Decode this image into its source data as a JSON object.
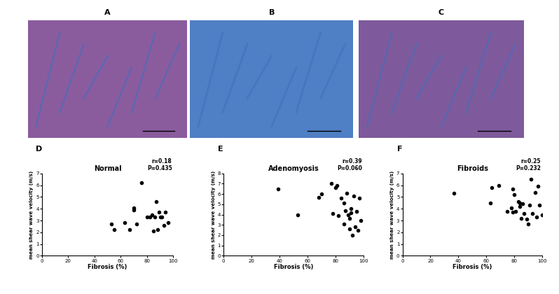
{
  "images": [
    {
      "label": "A",
      "color": "#8a5c9e"
    },
    {
      "label": "B",
      "color": "#4f7fc4"
    },
    {
      "label": "C",
      "color": "#7e5a9c"
    }
  ],
  "chart_data": [
    {
      "type": "scatter",
      "label": "D",
      "title": "Normal",
      "annotation": "r=0.18\nP=0.435",
      "x_label": "Fibrosis (%)",
      "y_label": "mean shear wave velocity (m/s)",
      "color": "#000000",
      "marker": "o",
      "x": [
        53,
        55,
        63,
        67,
        70,
        70,
        72,
        76,
        80,
        82,
        84,
        85,
        86,
        87,
        88,
        89,
        90,
        91,
        93,
        94,
        96
      ],
      "values": [
        2.7,
        2.2,
        2.8,
        2.2,
        4.1,
        3.9,
        2.7,
        6.2,
        3.3,
        3.3,
        3.5,
        2.1,
        3.3,
        4.6,
        2.2,
        3.7,
        3.3,
        3.3,
        2.6,
        3.7,
        2.8
      ],
      "xlim": [
        0,
        100
      ],
      "xticks": [
        0,
        20,
        40,
        60,
        80,
        100
      ],
      "ylim": [
        0,
        7
      ],
      "yticks": [
        0,
        1,
        2,
        3,
        4,
        5,
        6,
        7
      ]
    },
    {
      "type": "scatter",
      "label": "E",
      "title": "Adenomyosis",
      "annotation": "r=0.39\nP=0.060",
      "x_label": "Fibrosis (%)",
      "y_label": "mean shear wave velocity (m/s)",
      "color": "#000000",
      "marker": "o",
      "x": [
        39,
        53,
        68,
        70,
        77,
        78,
        80,
        81,
        82,
        84,
        86,
        86,
        87,
        88,
        89,
        90,
        90,
        91,
        91,
        92,
        93,
        94,
        95,
        96,
        97,
        98
      ],
      "values": [
        6.5,
        4.0,
        5.7,
        6.0,
        7.0,
        4.1,
        6.6,
        6.8,
        3.9,
        5.6,
        5.1,
        3.1,
        4.4,
        6.1,
        4.0,
        3.6,
        2.6,
        4.6,
        4.2,
        2.0,
        5.8,
        2.8,
        4.3,
        2.5,
        5.6,
        3.4
      ],
      "xlim": [
        0,
        100
      ],
      "xticks": [
        0,
        20,
        40,
        60,
        80,
        100
      ],
      "ylim": [
        0,
        8
      ],
      "yticks": [
        0,
        1,
        2,
        3,
        4,
        5,
        6,
        7,
        8
      ]
    },
    {
      "type": "scatter",
      "label": "F",
      "title": "Fibroids",
      "annotation": "r=0.25\nP=0.232",
      "x_label": "Fibrosis (%)",
      "y_label": "mean shear wave velocity (m/s)",
      "color": "#000000",
      "marker": "o",
      "x": [
        37,
        63,
        64,
        69,
        75,
        78,
        79,
        79,
        80,
        81,
        83,
        84,
        84,
        85,
        86,
        87,
        89,
        90,
        91,
        92,
        93,
        95,
        96,
        97,
        98,
        100
      ],
      "values": [
        5.3,
        4.5,
        5.8,
        6.0,
        3.8,
        4.1,
        5.7,
        3.7,
        5.2,
        3.8,
        4.6,
        4.5,
        4.2,
        3.2,
        4.4,
        3.6,
        3.1,
        2.7,
        4.3,
        6.5,
        3.6,
        5.4,
        3.3,
        5.9,
        4.3,
        3.5
      ],
      "xlim": [
        0,
        100
      ],
      "xticks": [
        0,
        20,
        40,
        60,
        80,
        100
      ],
      "ylim": [
        0,
        7
      ],
      "yticks": [
        0,
        1,
        2,
        3,
        4,
        5,
        6,
        7
      ]
    }
  ]
}
